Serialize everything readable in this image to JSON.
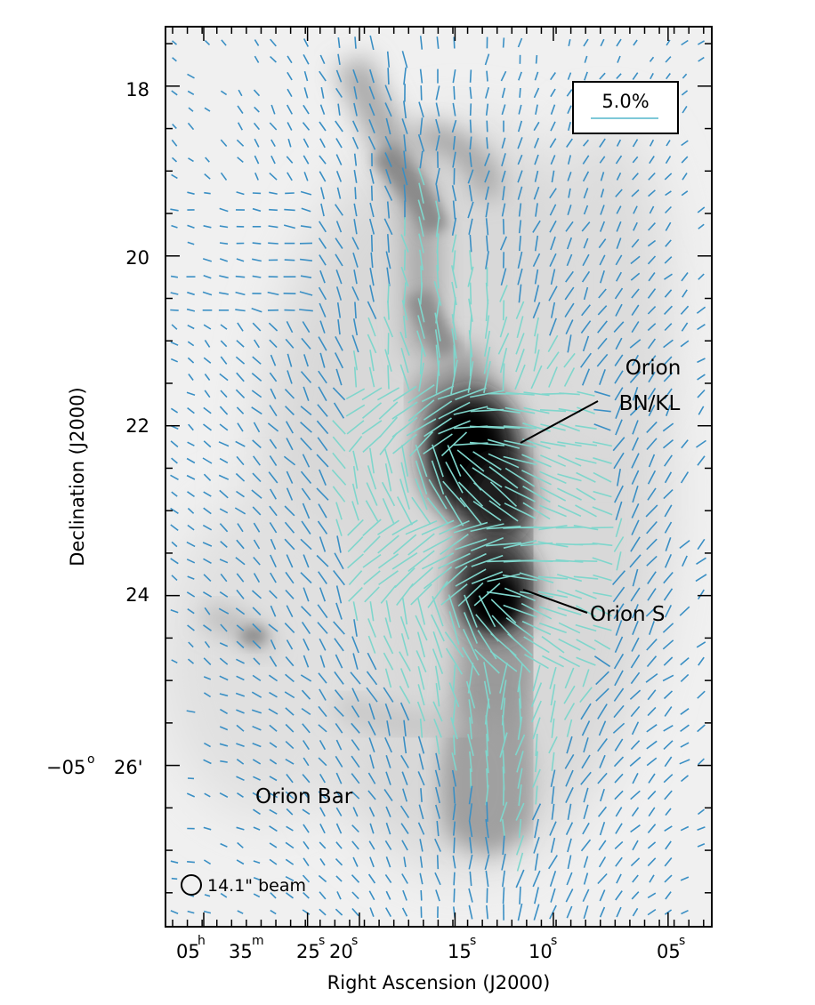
{
  "chart_data": {
    "type": "scatter",
    "subtype": "polarization vector map over grayscale intensity image",
    "xlabel": "Right Ascension (J2000)",
    "ylabel": "Declination (J2000)",
    "x_ticks": [
      {
        "h": "05",
        "m": "35",
        "s": "",
        "pos": 0.07
      },
      {
        "s": "25",
        "pos": 0.26
      },
      {
        "s": "20",
        "pos": 0.355
      },
      {
        "s": "15",
        "pos": 0.53
      },
      {
        "s": "10",
        "pos": 0.71
      },
      {
        "s": "05",
        "pos": 0.92
      }
    ],
    "y_ticks": [
      {
        "label": "18",
        "value": 18
      },
      {
        "label": "20",
        "value": 20
      },
      {
        "label": "22",
        "value": 22
      },
      {
        "label": "24",
        "value": 24
      },
      {
        "label": "26'",
        "prefix": "−05",
        "deg_sup": "o",
        "value": 26
      }
    ],
    "ylim": [
      17.3,
      27.9
    ],
    "legend": {
      "text": "5.0%",
      "placement": "top-right",
      "vector_color": "#7ec8d8"
    },
    "beam_label": "14.1\" beam",
    "annotations": [
      {
        "lines": [
          "Orion",
          "BN/KL"
        ],
        "target_dec": 22.25
      },
      {
        "lines": [
          "Orion S"
        ],
        "target_dec": 23.9
      },
      {
        "lines": [
          "Orion Bar"
        ],
        "target_dec": 26.4
      }
    ],
    "vector_colors": {
      "weak": "#3a8fc4",
      "strong": "#7fd6cc"
    },
    "background": "grayscale intensity, black = high emission"
  }
}
